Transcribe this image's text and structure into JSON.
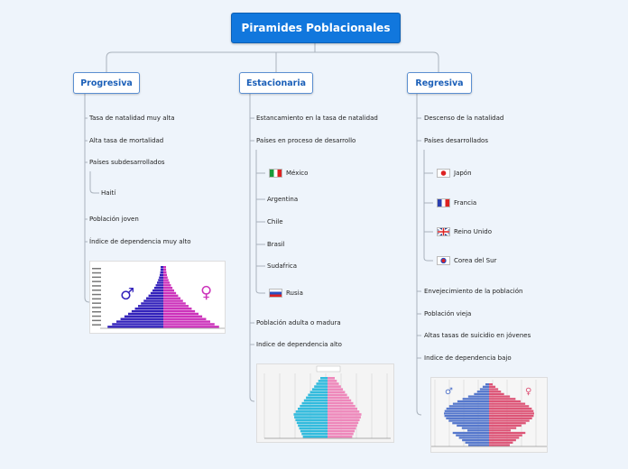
{
  "root": {
    "title": "Piramides Poblacionales"
  },
  "branches": {
    "progresiva": {
      "label": "Progresiva",
      "items": [
        "Tasa de natalidad muy alta",
        "Alta tasa de mortalidad",
        "Países subdesarrollados",
        "Población joven",
        "Índice de dependencia muy alto"
      ],
      "sub": [
        "Haití"
      ],
      "symbols": {
        "male": "♂",
        "female": "♀"
      }
    },
    "estacionaria": {
      "label": "Estacionaria",
      "items": [
        "Estancamiento en la tasa de natalidad",
        "Países en proceso de desarrollo",
        "Población adulta o madura",
        "Indice de dependencia alto"
      ],
      "sub": [
        "México",
        "Argentina",
        "Chile",
        "Brasil",
        "Sudafrica",
        "Rusia"
      ]
    },
    "regresiva": {
      "label": "Regresiva",
      "items": [
        "Descenso de la natalidad",
        "Países desarrollados",
        "Envejecimiento de la población",
        "Población vieja",
        "Altas tasas de suicidio en jóvenes",
        "Indice de dependencia bajo"
      ],
      "sub": [
        "Japón",
        "Francia",
        "Reino Unido",
        "Corea del Sur"
      ]
    }
  },
  "colors": {
    "root": "#1177dd",
    "male_progressive": "#3322bb",
    "female_progressive": "#cc33bb",
    "male_stationary": "#33bbdd",
    "female_stationary": "#ee88bb"
  }
}
